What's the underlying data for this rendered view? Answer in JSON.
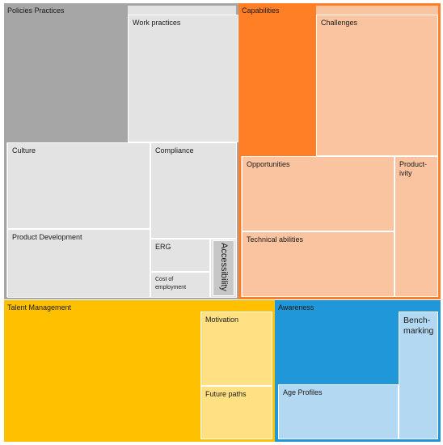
{
  "treemap": {
    "groups": [
      {
        "label": "Policies Practices",
        "children": [
          "Work practices",
          "Culture",
          "Compliance",
          "Product Development",
          "ERG",
          "Cost of employment",
          "Accessibility"
        ]
      },
      {
        "label": "Capabilities",
        "children": [
          "Challenges",
          "Opportunities",
          "Product-ivity",
          "Technical abilities"
        ]
      },
      {
        "label": "Talent Management",
        "children": [
          "Motivation",
          "Future paths"
        ]
      },
      {
        "label": "Awareness",
        "children": [
          "Bench-marking",
          "Age Profiles"
        ]
      }
    ]
  },
  "colors": {
    "policies": "#a6a6a6",
    "policies_light": "#e3e3e3",
    "capabilities": "#ff7f27",
    "capabilities_light": "#fbc4a0",
    "talent": "#ffc000",
    "talent_light": "#ffe082",
    "awareness": "#1f97d8",
    "awareness_light": "#b3d9f2"
  }
}
